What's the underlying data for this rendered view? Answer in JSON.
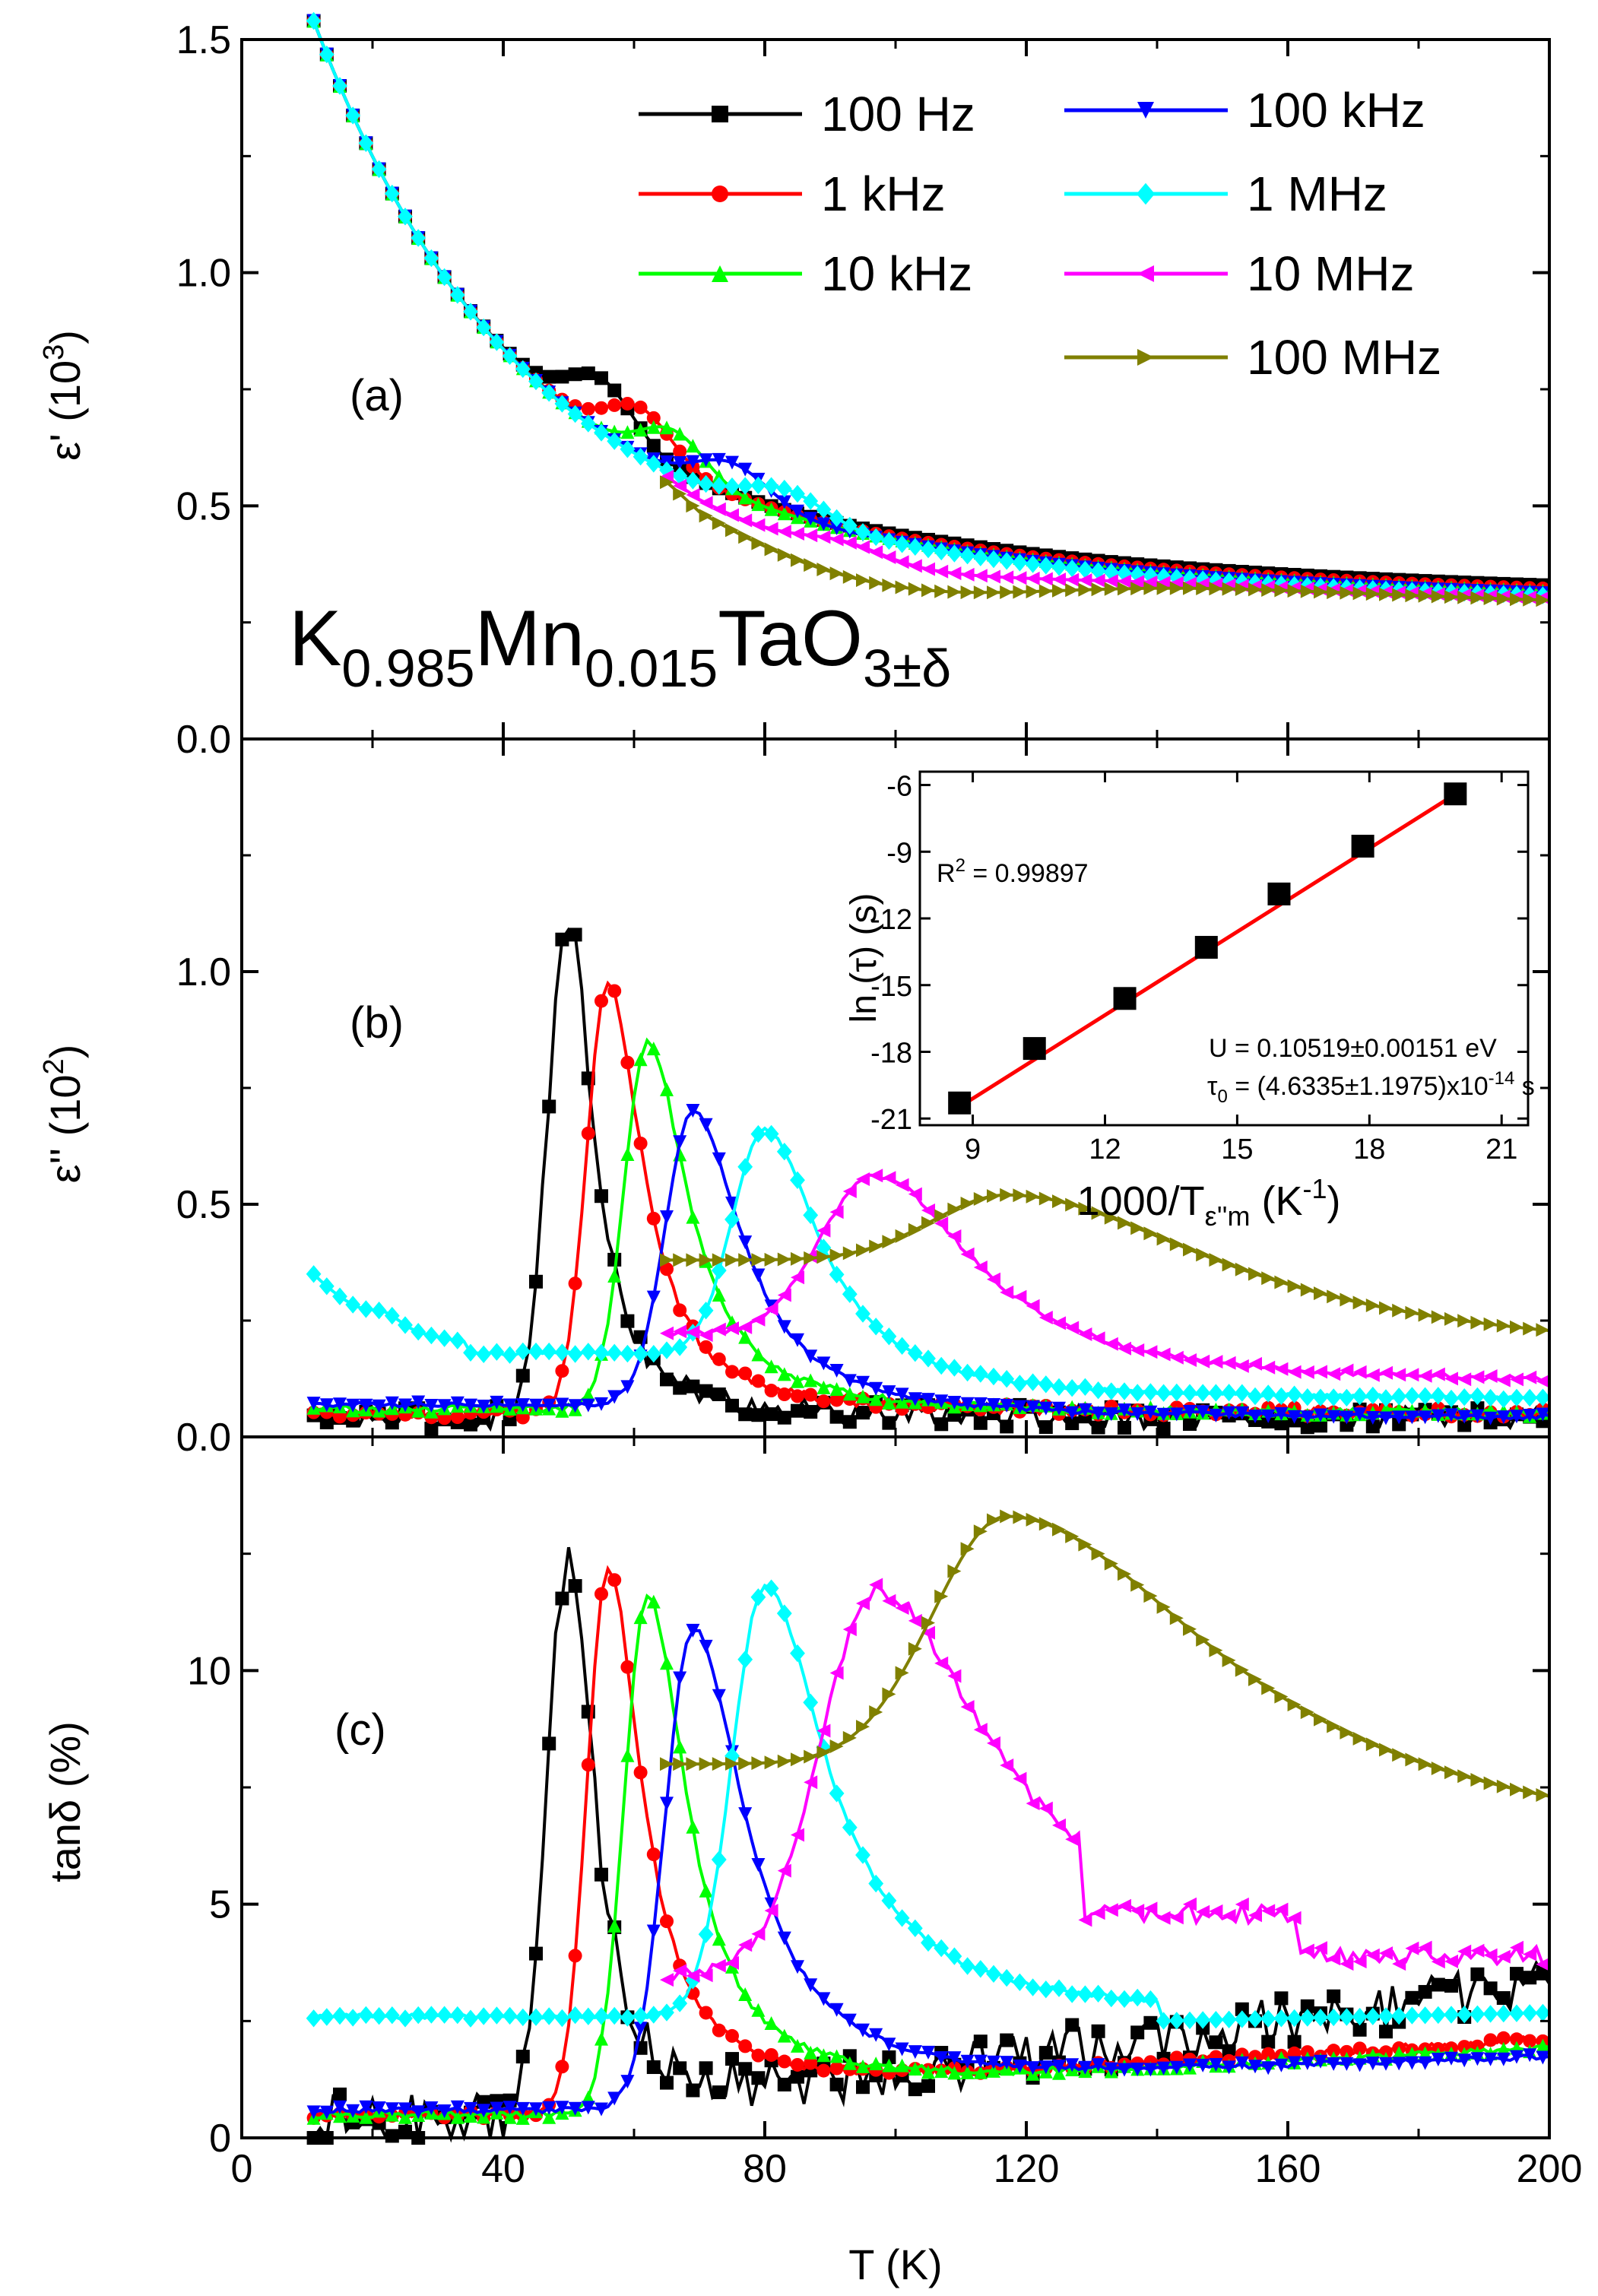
{
  "chart_data": [
    {
      "id": "a",
      "type": "line",
      "panel_label": "(a)",
      "ylabel": "ε' (10",
      "ylabel_sup": "3",
      "ylabel_close": ")",
      "ylim": [
        0,
        1.5
      ],
      "yticks": [
        "0.0",
        "0.5",
        "1.0",
        "1.5"
      ],
      "ytick_values": [
        0,
        0.5,
        1.0,
        1.5
      ],
      "formula": {
        "K": "K",
        "k_sub": "0.985",
        "Mn": "Mn",
        "mn_sub": "0.015",
        "TaO": "TaO",
        "o_sub": "3±δ"
      },
      "series": [
        {
          "name": "100 Hz",
          "color": "#000000",
          "marker": "square",
          "tstart": 11,
          "Tp": 55,
          "amp": 0.11,
          "w": 7,
          "dip": 0.02,
          "c0": 0.022
        },
        {
          "name": "1 kHz",
          "color": "#ff0000",
          "marker": "circle",
          "tstart": 11,
          "Tp": 61,
          "amp": 0.1,
          "w": 7,
          "dip": 0.03,
          "c0": 0.015
        },
        {
          "name": "10 kHz",
          "color": "#00ff00",
          "marker": "triangle-up",
          "tstart": 11,
          "Tp": 66,
          "amp": 0.09,
          "w": 7,
          "dip": 0.04,
          "c0": 0.01
        },
        {
          "name": "100 kHz",
          "color": "#0000ff",
          "marker": "triangle-down",
          "tstart": 11,
          "Tp": 75,
          "amp": 0.075,
          "w": 8,
          "dip": 0.04,
          "c0": 0.005
        },
        {
          "name": "1 MHz",
          "color": "#00ffff",
          "marker": "diamond",
          "tstart": 11,
          "Tp": 83,
          "amp": 0.06,
          "w": 9,
          "dip": 0.04,
          "c0": 0.0
        },
        {
          "name": "10 MHz",
          "color": "#ff00ff",
          "marker": "triangle-left",
          "tstart": 65,
          "Tp": 92,
          "amp": 0.03,
          "w": 9,
          "dip": 0.03,
          "c0": -0.005
        },
        {
          "name": "100 MHz",
          "color": "#808000",
          "marker": "triangle-right",
          "tstart": 65,
          "Tp": 120,
          "amp": 0.0,
          "w": 10,
          "dip": 0.08,
          "c0": -0.01
        }
      ]
    },
    {
      "id": "b",
      "type": "line",
      "panel_label": "(b)",
      "ylabel": "ε'' (10",
      "ylabel_sup": "2",
      "ylabel_close": ")",
      "ylim": [
        0,
        1.5
      ],
      "yticks": [
        "0.0",
        "0.5",
        "1.0"
      ],
      "ytick_values": [
        0,
        0.5,
        1.0
      ],
      "series": [
        {
          "name": "100 Hz",
          "color": "#000000",
          "marker": "square",
          "tstart": 11,
          "Tp": 50,
          "peak": 1.11,
          "wl": 4.5,
          "wr": 4.0,
          "base": 0.04,
          "tail": 0.04,
          "noise": 0.025
        },
        {
          "name": "1 kHz",
          "color": "#ff0000",
          "marker": "circle",
          "tstart": 11,
          "Tp": 56,
          "peak": 0.98,
          "wl": 4.5,
          "wr": 5.5,
          "base": 0.05,
          "tail": 0.05,
          "noise": 0.01
        },
        {
          "name": "10 kHz",
          "color": "#00ff00",
          "marker": "triangle-up",
          "tstart": 11,
          "Tp": 62,
          "peak": 0.85,
          "wl": 5,
          "wr": 6.5,
          "base": 0.06,
          "tail": 0.05,
          "noise": 0.008
        },
        {
          "name": "100 kHz",
          "color": "#0000ff",
          "marker": "triangle-down",
          "tstart": 11,
          "Tp": 69,
          "peak": 0.7,
          "wl": 6,
          "wr": 8,
          "base": 0.07,
          "tail": 0.04,
          "noise": 0.005
        },
        {
          "name": "1 MHz",
          "color": "#00ffff",
          "marker": "diamond",
          "tstart": 11,
          "Tp": 80,
          "peak": 0.66,
          "wl": 7,
          "wr": 9,
          "base": 0.18,
          "tail": 0.08,
          "noise": 0.004
        },
        {
          "name": "10 MHz",
          "color": "#ff00ff",
          "marker": "triangle-left",
          "tstart": 65,
          "Tp": 97,
          "peak": 0.56,
          "wl": 12,
          "wr": 16,
          "base": 0.22,
          "tail": 0.11,
          "noise": 0.006
        },
        {
          "name": "100 MHz",
          "color": "#808000",
          "marker": "triangle-right",
          "tstart": 65,
          "Tp": 117,
          "peak": 0.52,
          "wl": 16,
          "wr": 35,
          "base": 0.38,
          "tail": 0.16,
          "noise": 0.0
        }
      ],
      "inset": {
        "type": "scatter",
        "xlabel": "1000/T",
        "xlabel_sub": "ε''m",
        "xlabel_unit": " (K",
        "xlabel_sup": "-1",
        "xlabel_close": ")",
        "ylabel": "ln (τ) (s)",
        "xlim": [
          7.8,
          21.6
        ],
        "ylim": [
          -21.3,
          -5.4
        ],
        "xticks": [
          "9",
          "12",
          "15",
          "18",
          "21"
        ],
        "xtick_values": [
          9,
          12,
          15,
          18,
          21
        ],
        "yticks": [
          "-21",
          "-18",
          "-15",
          "-12",
          "-9",
          "-6"
        ],
        "ytick_values": [
          -21,
          -18,
          -15,
          -12,
          -9,
          -6
        ],
        "x": [
          8.7,
          10.4,
          12.45,
          14.3,
          15.95,
          17.85,
          19.95
        ],
        "y": [
          -20.3,
          -17.85,
          -15.6,
          -13.3,
          -10.9,
          -8.75,
          -6.4
        ],
        "fit": {
          "x": [
            8.6,
            20.0
          ],
          "y": [
            -20.6,
            -6.35
          ],
          "color": "#ff0000"
        },
        "r2_label": "R",
        "r2_sup": "2",
        "r2_value": " = 0.99897",
        "u_label": "U = 0.10519±0.00151 eV",
        "tau_label": "τ",
        "tau_sub": "0",
        "tau_value": " = (4.6335±1.1975)x10",
        "tau_exp": "-14",
        "tau_unit": " s"
      }
    },
    {
      "id": "c",
      "type": "line",
      "panel_label": "(c)",
      "ylabel": "tanδ (%)",
      "xlabel": "T (K)",
      "xlim": [
        0,
        200
      ],
      "ylim": [
        0,
        15
      ],
      "xticks": [
        "0",
        "40",
        "80",
        "120",
        "160",
        "200"
      ],
      "xtick_values": [
        0,
        40,
        80,
        120,
        160,
        200
      ],
      "yticks": [
        "0",
        "5",
        "10"
      ],
      "ytick_values": [
        0,
        5,
        10
      ],
      "series": [
        {
          "name": "100 Hz",
          "color": "#000000",
          "marker": "square",
          "tstart": 11,
          "Tp": 50,
          "peak": 12.5,
          "wl": 4.5,
          "wr": 4.0,
          "base": 0.4,
          "tail": 0.3,
          "slope": 0.02,
          "noise": 0.55
        },
        {
          "name": "1 kHz",
          "color": "#ff0000",
          "marker": "circle",
          "tstart": 11,
          "Tp": 56,
          "peak": 12.2,
          "wl": 4.5,
          "wr": 5.5,
          "base": 0.5,
          "tail": 0.8,
          "slope": 0.009,
          "noise": 0.08
        },
        {
          "name": "10 kHz",
          "color": "#00ff00",
          "marker": "triangle-up",
          "tstart": 11,
          "Tp": 62,
          "peak": 11.6,
          "wl": 5,
          "wr": 6.5,
          "base": 0.5,
          "tail": 0.8,
          "slope": 0.008,
          "noise": 0.08
        },
        {
          "name": "100 kHz",
          "color": "#0000ff",
          "marker": "triangle-down",
          "tstart": 11,
          "Tp": 69,
          "peak": 10.9,
          "wl": 6,
          "wr": 8.5,
          "base": 0.6,
          "tail": 0.9,
          "slope": 0.006,
          "noise": 0.06
        },
        {
          "name": "1 MHz",
          "color": "#00ffff",
          "marker": "diamond",
          "tstart": 11,
          "Tp": 80,
          "peak": 11.8,
          "wl": 7,
          "wr": 10,
          "base": 2.6,
          "tail": 2.6,
          "slope": 0.0,
          "noise": 0.05
        },
        {
          "name": "10 MHz",
          "color": "#ff00ff",
          "marker": "triangle-left",
          "tstart": 65,
          "Tp": 97,
          "peak": 11.7,
          "wl": 12,
          "wr": 18,
          "base": 3.5,
          "tail": 4.0,
          "slope": 0.0,
          "noise": 0.15
        },
        {
          "name": "100 MHz",
          "color": "#808000",
          "marker": "triangle-right",
          "tstart": 65,
          "Tp": 117,
          "peak": 13.3,
          "wl": 16,
          "wr": 35,
          "base": 8.0,
          "tail": 5.9,
          "slope": 0.0,
          "noise": 0.0
        }
      ]
    }
  ]
}
